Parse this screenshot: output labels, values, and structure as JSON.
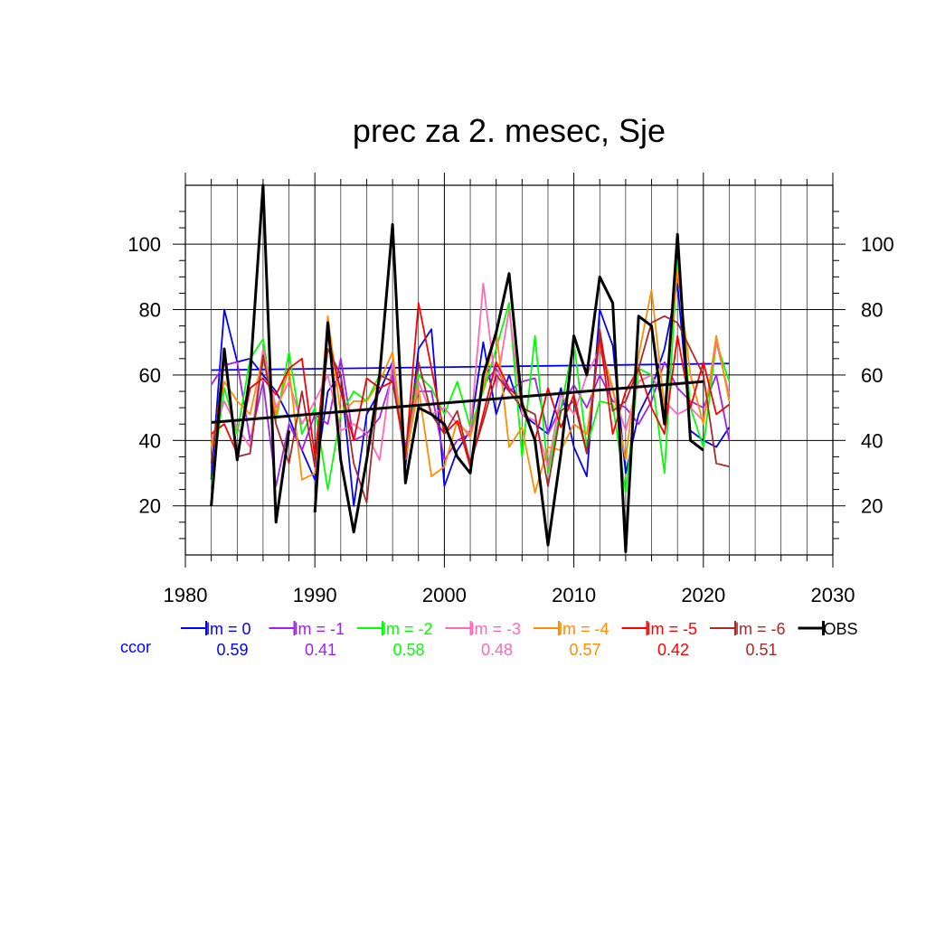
{
  "chart_data": {
    "type": "line",
    "title": "prec za 2. mesec, Sje",
    "xlabel": "",
    "ylabel": "",
    "xlim": [
      1980,
      2030
    ],
    "ylim": [
      5,
      118
    ],
    "x_ticks": [
      1980,
      1990,
      2000,
      2010,
      2020,
      2030
    ],
    "y_ticks": [
      20,
      40,
      60,
      80,
      100
    ],
    "grid": true,
    "legend_placement": "bottom",
    "ccor_label": "ccor",
    "series": [
      {
        "name": "lm = 0",
        "color": "#0000ff",
        "ccor": "0.59",
        "x": [
          1982,
          1983,
          1984,
          1985,
          1986,
          1987,
          1988,
          1989,
          1990,
          1991,
          1992,
          1993,
          1994,
          1995,
          1996,
          1997,
          1998,
          1999,
          2000,
          2001,
          2002,
          2003,
          2004,
          2005,
          2006,
          2007,
          2008,
          2009,
          2010,
          2011,
          2012,
          2013,
          2014,
          2015,
          2016,
          2017,
          2018,
          2019,
          2020,
          2021,
          2022
        ],
        "values": [
          28,
          80,
          64,
          65,
          60,
          55,
          47,
          37,
          28,
          55,
          60,
          20,
          48,
          55,
          64,
          32,
          68,
          74,
          26,
          37,
          43,
          70,
          48,
          60,
          48,
          45,
          42,
          56,
          38,
          29,
          80,
          69,
          30,
          48,
          56,
          68,
          88,
          43,
          40,
          38,
          44
        ],
        "trend": [
          [
            1982,
            61.5
          ],
          [
            2022,
            63.5
          ]
        ]
      },
      {
        "name": "lm = -1",
        "color": "#a020f0",
        "ccor": "0.41",
        "x": [
          1982,
          1983,
          1984,
          1985,
          1986,
          1987,
          1988,
          1989,
          1990,
          1991,
          1992,
          1993,
          1994,
          1995,
          1996,
          1997,
          1998,
          1999,
          2000,
          2001,
          2002,
          2003,
          2004,
          2005,
          2006,
          2007,
          2008,
          2009,
          2010,
          2011,
          2012,
          2013,
          2014,
          2015,
          2016,
          2017,
          2018,
          2019,
          2020,
          2021,
          2022
        ],
        "values": [
          57,
          63,
          64,
          40,
          58,
          26,
          45,
          37,
          48,
          45,
          65,
          40,
          42,
          47,
          60,
          38,
          55,
          55,
          34,
          40,
          42,
          57,
          62,
          55,
          58,
          59,
          42,
          50,
          57,
          50,
          60,
          52,
          50,
          45,
          52,
          64,
          56,
          52,
          50,
          60,
          40
        ]
      },
      {
        "name": "lm = -2",
        "color": "#00ff00",
        "ccor": "0.58",
        "x": [
          1982,
          1983,
          1984,
          1985,
          1986,
          1987,
          1988,
          1989,
          1990,
          1991,
          1992,
          1993,
          1994,
          1995,
          1996,
          1997,
          1998,
          1999,
          2000,
          2001,
          2002,
          2003,
          2004,
          2005,
          2006,
          2007,
          2008,
          2009,
          2010,
          2011,
          2012,
          2013,
          2014,
          2015,
          2016,
          2017,
          2018,
          2019,
          2020,
          2021,
          2022
        ],
        "values": [
          26,
          56,
          42,
          65,
          71,
          46,
          67,
          42,
          50,
          25,
          48,
          55,
          52,
          60,
          58,
          37,
          60,
          56,
          48,
          58,
          44,
          55,
          68,
          82,
          35,
          72,
          30,
          50,
          70,
          38,
          52,
          51,
          24,
          62,
          60,
          30,
          95,
          50,
          38,
          70,
          58
        ]
      },
      {
        "name": "lm = -3",
        "color": "#ff69b4",
        "ccor": "0.48",
        "x": [
          1982,
          1983,
          1984,
          1985,
          1986,
          1987,
          1988,
          1989,
          1990,
          1991,
          1992,
          1993,
          1994,
          1995,
          1996,
          1997,
          1998,
          1999,
          2000,
          2001,
          2002,
          2003,
          2004,
          2005,
          2006,
          2007,
          2008,
          2009,
          2010,
          2011,
          2012,
          2013,
          2014,
          2015,
          2016,
          2017,
          2018,
          2019,
          2020,
          2021,
          2022
        ],
        "values": [
          40,
          52,
          44,
          38,
          68,
          50,
          58,
          45,
          52,
          60,
          43,
          45,
          42,
          34,
          64,
          35,
          58,
          48,
          50,
          45,
          42,
          88,
          56,
          80,
          48,
          46,
          32,
          54,
          48,
          60,
          68,
          55,
          43,
          58,
          60,
          52,
          48,
          50,
          46,
          70,
          54
        ]
      },
      {
        "name": "lm = -4",
        "color": "#ff8c00",
        "ccor": "0.57",
        "x": [
          1982,
          1983,
          1984,
          1985,
          1986,
          1987,
          1988,
          1989,
          1990,
          1991,
          1992,
          1993,
          1994,
          1995,
          1996,
          1997,
          1998,
          1999,
          2000,
          2001,
          2002,
          2003,
          2004,
          2005,
          2006,
          2007,
          2008,
          2009,
          2010,
          2011,
          2012,
          2013,
          2014,
          2015,
          2016,
          2017,
          2018,
          2019,
          2020,
          2021,
          2022
        ],
        "values": [
          38,
          58,
          52,
          48,
          66,
          48,
          62,
          28,
          30,
          78,
          48,
          52,
          52,
          58,
          67,
          34,
          56,
          29,
          32,
          46,
          41,
          56,
          74,
          38,
          44,
          24,
          38,
          37,
          45,
          42,
          70,
          56,
          34,
          66,
          86,
          50,
          92,
          60,
          45,
          72,
          52
        ]
      },
      {
        "name": "lm = -5",
        "color": "#ff0000",
        "ccor": "0.42",
        "x": [
          1982,
          1983,
          1984,
          1985,
          1986,
          1987,
          1988,
          1989,
          1990,
          1991,
          1992,
          1993,
          1994,
          1995,
          1996,
          1997,
          1998,
          1999,
          2000,
          2001,
          2002,
          2003,
          2004,
          2005,
          2006,
          2007,
          2008,
          2009,
          2010,
          2011,
          2012,
          2013,
          2014,
          2015,
          2016,
          2017,
          2018,
          2019,
          2020,
          2021,
          2022
        ],
        "values": [
          42,
          45,
          36,
          56,
          59,
          54,
          62,
          65,
          35,
          72,
          55,
          40,
          59,
          56,
          58,
          35,
          82,
          62,
          42,
          46,
          32,
          48,
          64,
          56,
          52,
          40,
          56,
          44,
          54,
          36,
          72,
          42,
          55,
          62,
          50,
          42,
          72,
          50,
          64,
          48,
          51
        ]
      },
      {
        "name": "lm = -6",
        "color": "#a52a2a",
        "ccor": "0.51",
        "x": [
          1982,
          1983,
          1984,
          1985,
          1986,
          1987,
          1988,
          1989,
          1990,
          1991,
          1992,
          1993,
          1994,
          1995,
          1996,
          1997,
          1998,
          1999,
          2000,
          2001,
          2002,
          2003,
          2004,
          2005,
          2006,
          2007,
          2008,
          2009,
          2010,
          2011,
          2012,
          2013,
          2014,
          2015,
          2016,
          2017,
          2018,
          2019,
          2020,
          2021,
          2022
        ],
        "values": [
          33,
          66,
          35,
          36,
          66,
          45,
          33,
          55,
          32,
          68,
          60,
          33,
          21,
          60,
          58,
          37,
          64,
          48,
          42,
          49,
          33,
          46,
          60,
          55,
          50,
          48,
          26,
          49,
          52,
          36,
          74,
          49,
          52,
          62,
          76,
          78,
          76,
          68,
          60,
          33,
          32
        ]
      },
      {
        "name": "OBS",
        "color": "#000000",
        "ccor": "",
        "x": [
          1982,
          1983,
          1984,
          1985,
          1986,
          1987,
          1988,
          1989,
          1990,
          1991,
          1992,
          1993,
          1994,
          1995,
          1996,
          1997,
          1998,
          1999,
          2000,
          2001,
          2002,
          2003,
          2004,
          2005,
          2006,
          2007,
          2008,
          2009,
          2010,
          2011,
          2012,
          2013,
          2014,
          2015,
          2016,
          2017,
          2018,
          2019,
          2020
        ],
        "values": [
          20,
          68,
          34,
          60,
          118,
          15,
          43,
          null,
          18,
          76,
          34,
          12,
          34,
          60,
          106,
          27,
          50,
          48,
          45,
          35,
          30,
          60,
          73,
          91,
          51,
          40,
          8,
          36,
          72,
          60,
          90,
          82,
          6,
          78,
          75,
          45,
          103,
          40,
          37
        ],
        "trend": [
          [
            1982,
            45.5
          ],
          [
            2020,
            58
          ]
        ]
      }
    ]
  }
}
